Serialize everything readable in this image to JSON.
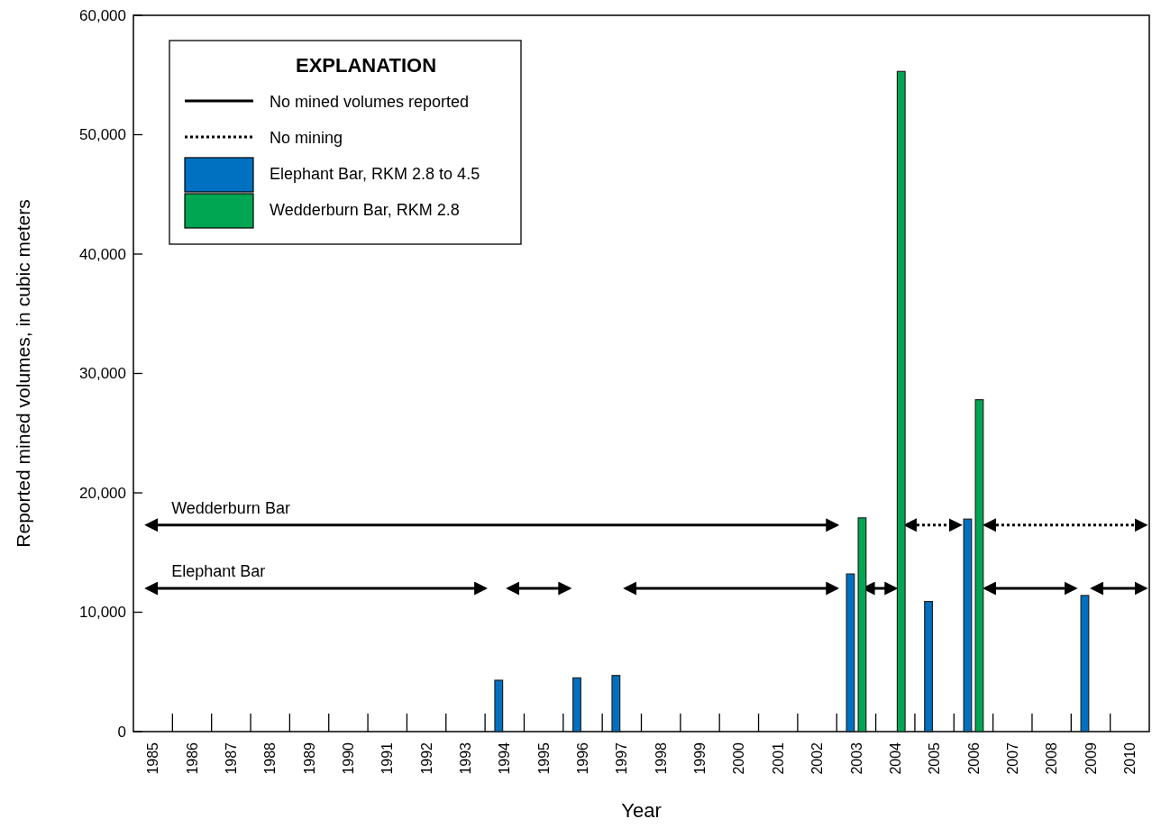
{
  "chart_data": {
    "type": "bar",
    "xlabel": "Year",
    "ylabel": "Reported mined volumes, in cubic meters",
    "legend_title": "EXPLANATION",
    "legend": "top left",
    "xlim": [
      1984.5,
      2010.5
    ],
    "xticks": [
      1985,
      1986,
      1987,
      1988,
      1989,
      1990,
      1991,
      1992,
      1993,
      1994,
      1995,
      1996,
      1997,
      1998,
      1999,
      2000,
      2001,
      2002,
      2003,
      2004,
      2005,
      2006,
      2007,
      2008,
      2009,
      2010
    ],
    "ylim": [
      0,
      60000
    ],
    "yticks": [
      0,
      {
        "value": 10000,
        "label": "10,000"
      },
      {
        "value": 20000,
        "label": "20,000"
      },
      {
        "value": 30000,
        "label": "30,000"
      },
      {
        "value": 40000,
        "label": "40,000"
      },
      {
        "value": 50000,
        "label": "50,000"
      },
      {
        "value": 60000,
        "label": "60,000"
      }
    ],
    "series": [
      {
        "name": "No mined volumes reported",
        "type": "line",
        "line_style": "solid",
        "color": "#000000",
        "x": [
          1984.85,
          2002.5
        ],
        "values": [
          17300,
          17300
        ]
      },
      {
        "type": "line",
        "line_style": "solid",
        "color": "#000000",
        "x": [
          1984.85,
          1993.5
        ],
        "values": [
          12000,
          12000
        ]
      },
      {
        "type": "line",
        "line_style": "solid",
        "color": "#000000",
        "x": [
          1994.1,
          1995.65
        ],
        "values": [
          12000,
          12000
        ]
      },
      {
        "type": "line",
        "line_style": "solid",
        "color": "#000000",
        "x": [
          1997.1,
          2002.5
        ],
        "values": [
          12000,
          12000
        ]
      },
      {
        "type": "line",
        "line_style": "solid",
        "color": "#000000",
        "x": [
          2003.2,
          2004.0
        ],
        "values": [
          12000,
          12000
        ]
      },
      {
        "type": "line",
        "line_style": "solid",
        "color": "#000000",
        "x": [
          2006.3,
          2008.6
        ],
        "values": [
          12000,
          12000
        ]
      },
      {
        "type": "line",
        "line_style": "solid",
        "color": "#000000",
        "x": [
          2009.05,
          2010.4
        ],
        "values": [
          12000,
          12000
        ]
      },
      {
        "name": "No mining",
        "type": "line",
        "line_style": "dotted",
        "color": "#000000",
        "x": [
          2004.27,
          2005.65
        ],
        "values": [
          17300,
          17300
        ]
      },
      {
        "type": "line",
        "line_style": "dotted",
        "color": "#000000",
        "x": [
          2006.3,
          2010.4
        ],
        "values": [
          17300,
          17300
        ]
      },
      {
        "name": "Elephant Bar, RKM 2.8 to 4.5",
        "color": "#0070c0",
        "x": [
          1994,
          1996,
          1997,
          2003,
          2005,
          2006,
          2009
        ],
        "values": [
          4300,
          4500,
          4700,
          13200,
          10900,
          17800,
          11400
        ]
      },
      {
        "name": "Wedderburn Bar, RKM 2.8",
        "color": "#00a651",
        "x": [
          2003,
          2004,
          2006
        ],
        "values": [
          17900,
          55300,
          27800
        ]
      }
    ],
    "annotations": [
      "Wedderburn Bar",
      "Elephant Bar"
    ]
  }
}
